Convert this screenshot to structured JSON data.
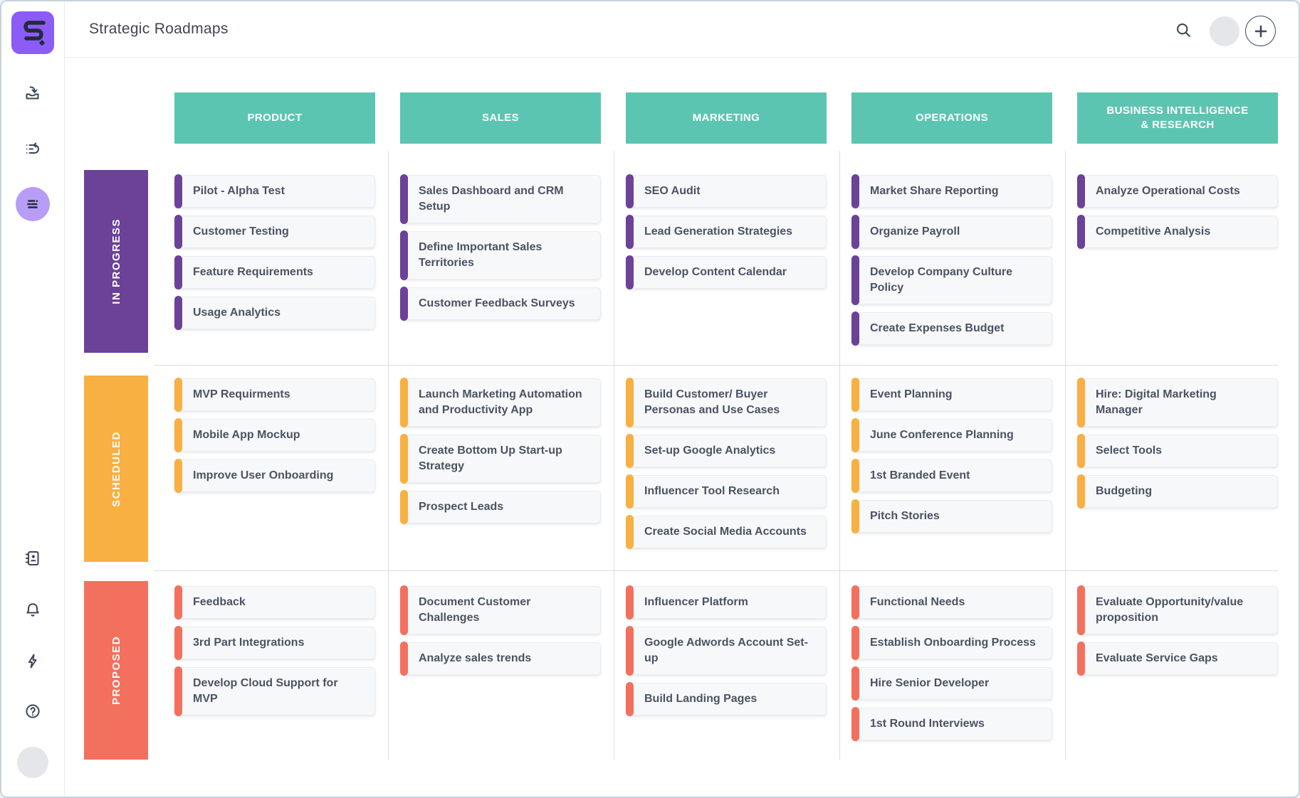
{
  "header": {
    "title": "Strategic Roadmaps",
    "icons": [
      "search-icon",
      "user-avatar",
      "plus-icon"
    ]
  },
  "sidebar": {
    "icons": [
      "app-logo",
      "import-icon",
      "queue-replay-icon",
      "roadmap-view-icon",
      "contacts-icon",
      "notifications-icon",
      "lightning-icon",
      "help-icon",
      "user-avatar"
    ],
    "active_item": "roadmap-view",
    "logo_color": "#8b5cf6",
    "active_item_bg": "#b79df6"
  },
  "board": {
    "column_header_color": "#5cc5b1",
    "columns": [
      "PRODUCT",
      "SALES",
      "MARKETING",
      "OPERATIONS",
      "BUSINESS INTELLIGENCE & RESEARCH"
    ],
    "rows": [
      {
        "label": "IN PROGRESS",
        "color": "#6b4298",
        "cells": [
          [
            "Pilot - Alpha Test",
            "Customer Testing",
            "Feature Requirements",
            "Usage Analytics"
          ],
          [
            "Sales Dashboard and CRM Setup",
            "Define Important Sales Territories",
            "Customer Feedback Surveys"
          ],
          [
            "SEO Audit",
            "Lead Generation Strategies",
            "Develop Content Calendar"
          ],
          [
            "Market Share Reporting",
            "Organize Payroll",
            "Develop Company Culture Policy",
            "Create Expenses Budget"
          ],
          [
            "Analyze Operational Costs",
            "Competitive Analysis"
          ]
        ]
      },
      {
        "label": "SCHEDULED",
        "color": "#f8b042",
        "cells": [
          [
            "MVP Requirments",
            "Mobile App Mockup",
            "Improve User Onboarding"
          ],
          [
            "Launch Marketing Automation and Productivity App",
            "Create Bottom Up Start-up Strategy",
            "Prospect Leads"
          ],
          [
            "Build Customer/ Buyer Personas and Use Cases",
            "Set-up Google Analytics",
            "Influencer Tool Research",
            "Create Social Media Accounts"
          ],
          [
            "Event Planning",
            "June Conference Planning",
            "1st Branded Event",
            "Pitch Stories"
          ],
          [
            "Hire: Digital Marketing Manager",
            "Select Tools",
            "Budgeting"
          ]
        ]
      },
      {
        "label": "PROPOSED",
        "color": "#f4705e",
        "cells": [
          [
            "Feedback",
            "3rd Part Integrations",
            "Develop Cloud Support for MVP"
          ],
          [
            "Document Customer Challenges",
            "Analyze sales trends"
          ],
          [
            "Influencer Platform",
            "Google Adwords Account Set-up",
            "Build Landing Pages"
          ],
          [
            "Functional Needs",
            "Establish Onboarding Process",
            "Hire Senior Developer",
            "1st Round Interviews"
          ],
          [
            "Evaluate Opportunity/value proposition",
            "Evaluate Service Gaps"
          ]
        ]
      }
    ]
  }
}
